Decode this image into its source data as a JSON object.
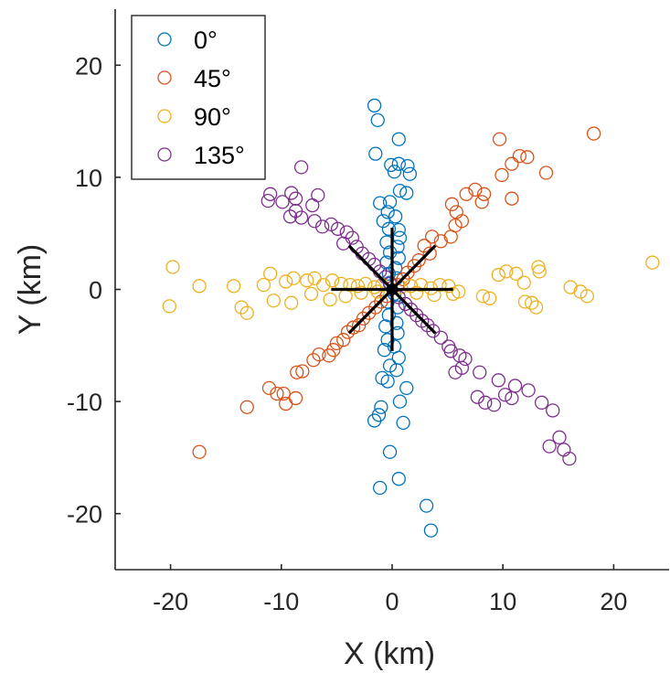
{
  "chart_data": {
    "type": "scatter",
    "title": "",
    "xlabel": "X (km)",
    "ylabel": "Y (km)",
    "xlim": [
      -25,
      25
    ],
    "ylim": [
      -25,
      25
    ],
    "xticks": [
      -20,
      -10,
      0,
      10,
      20
    ],
    "yticks": [
      -20,
      -10,
      0,
      10,
      20
    ],
    "xtick_labels": [
      "-20",
      "-10",
      "0",
      "10",
      "20"
    ],
    "ytick_labels": [
      "-20",
      "-10",
      "0",
      "10",
      "20"
    ],
    "grid": false,
    "legend_position": "top-left",
    "series": [
      {
        "name": "0°",
        "color": "#0072BD",
        "points": [
          [
            -1.6,
            16.4
          ],
          [
            -1.3,
            15.1
          ],
          [
            0.6,
            13.4
          ],
          [
            -1.5,
            12.1
          ],
          [
            -0.1,
            11.1
          ],
          [
            0.6,
            11.2
          ],
          [
            1.4,
            11.0
          ],
          [
            1.6,
            10.3
          ],
          [
            0.2,
            10.5
          ],
          [
            0.7,
            8.8
          ],
          [
            -1.1,
            7.7
          ],
          [
            -0.2,
            7.8
          ],
          [
            1.3,
            8.6
          ],
          [
            -0.4,
            6.9
          ],
          [
            0.3,
            6.5
          ],
          [
            -0.8,
            6.1
          ],
          [
            0.6,
            5.3
          ],
          [
            -0.3,
            5.4
          ],
          [
            0.7,
            4.6
          ],
          [
            -0.5,
            4.2
          ],
          [
            0.5,
            3.8
          ],
          [
            -0.2,
            3.3
          ],
          [
            0.6,
            2.8
          ],
          [
            -0.5,
            2.4
          ],
          [
            0.3,
            1.9
          ],
          [
            -0.3,
            1.4
          ],
          [
            0.4,
            1.0
          ],
          [
            -0.2,
            0.6
          ],
          [
            0.2,
            -0.4
          ],
          [
            -0.4,
            -1.1
          ],
          [
            0.5,
            -1.6
          ],
          [
            -0.3,
            -2.3
          ],
          [
            0.4,
            -3.0
          ],
          [
            -0.6,
            -3.3
          ],
          [
            0.5,
            -3.9
          ],
          [
            -0.4,
            -4.5
          ],
          [
            0.2,
            -5.1
          ],
          [
            -0.7,
            -5.4
          ],
          [
            0.6,
            -6.1
          ],
          [
            -0.2,
            -6.8
          ],
          [
            0.4,
            -7.2
          ],
          [
            -0.9,
            -7.9
          ],
          [
            -0.4,
            -8.2
          ],
          [
            1.3,
            -8.8
          ],
          [
            -1.0,
            -10.5
          ],
          [
            0.7,
            -10.0
          ],
          [
            -1.6,
            -11.7
          ],
          [
            -1.2,
            -11.2
          ],
          [
            1.0,
            -11.9
          ],
          [
            -0.2,
            -14.5
          ],
          [
            0.6,
            -16.9
          ],
          [
            -1.1,
            -17.7
          ],
          [
            3.1,
            -19.3
          ],
          [
            3.5,
            -21.5
          ]
        ]
      },
      {
        "name": "45°",
        "color": "#D95319",
        "points": [
          [
            18.2,
            13.9
          ],
          [
            12.2,
            11.8
          ],
          [
            9.7,
            13.4
          ],
          [
            10.8,
            11.2
          ],
          [
            11.5,
            11.9
          ],
          [
            13.9,
            10.4
          ],
          [
            9.9,
            10.2
          ],
          [
            8.3,
            8.5
          ],
          [
            10.8,
            8.1
          ],
          [
            8.1,
            7.8
          ],
          [
            7.5,
            8.9
          ],
          [
            6.7,
            8.5
          ],
          [
            5.8,
            6.9
          ],
          [
            5.4,
            7.6
          ],
          [
            6.3,
            6.1
          ],
          [
            5.7,
            5.7
          ],
          [
            5.3,
            4.7
          ],
          [
            4.4,
            4.3
          ],
          [
            3.6,
            4.7
          ],
          [
            3.4,
            3.2
          ],
          [
            2.9,
            3.9
          ],
          [
            2.4,
            2.6
          ],
          [
            2.0,
            2.1
          ],
          [
            1.4,
            1.5
          ],
          [
            1.0,
            0.9
          ],
          [
            0.5,
            0.4
          ],
          [
            -0.5,
            -0.6
          ],
          [
            -1.0,
            -1.1
          ],
          [
            -1.5,
            -1.6
          ],
          [
            -2.1,
            -2.1
          ],
          [
            -2.6,
            -2.6
          ],
          [
            -3.0,
            -3.2
          ],
          [
            -3.5,
            -3.4
          ],
          [
            -4.0,
            -3.8
          ],
          [
            -4.4,
            -4.5
          ],
          [
            -5.0,
            -4.8
          ],
          [
            -5.3,
            -5.4
          ],
          [
            -5.7,
            -5.9
          ],
          [
            -6.6,
            -5.8
          ],
          [
            -7.1,
            -6.3
          ],
          [
            -8.1,
            -7.3
          ],
          [
            -8.6,
            -7.4
          ],
          [
            -8.7,
            -9.7
          ],
          [
            -9.8,
            -9.3
          ],
          [
            -10.4,
            -9.3
          ],
          [
            -11.1,
            -8.8
          ],
          [
            -9.6,
            -10.2
          ],
          [
            -13.1,
            -10.5
          ],
          [
            -17.4,
            -14.5
          ]
        ]
      },
      {
        "name": "90°",
        "color": "#EDB120",
        "points": [
          [
            -19.8,
            2.0
          ],
          [
            -20.1,
            -1.5
          ],
          [
            -14.3,
            0.3
          ],
          [
            -13.6,
            -1.6
          ],
          [
            -13.1,
            -2.1
          ],
          [
            -11.0,
            1.4
          ],
          [
            -11.6,
            0.4
          ],
          [
            -10.7,
            -1.0
          ],
          [
            -9.6,
            0.7
          ],
          [
            -8.9,
            1.0
          ],
          [
            -7.7,
            0.8
          ],
          [
            -7.0,
            1.0
          ],
          [
            -6.2,
            0.4
          ],
          [
            -5.4,
            0.8
          ],
          [
            -4.6,
            0.5
          ],
          [
            -3.8,
            0.4
          ],
          [
            -3.1,
            0.3
          ],
          [
            -2.4,
            0.5
          ],
          [
            -1.6,
            0.2
          ],
          [
            -0.9,
            0.4
          ],
          [
            -9.1,
            -1.2
          ],
          [
            -7.3,
            -0.4
          ],
          [
            -5.6,
            -0.9
          ],
          [
            -4.2,
            -0.6
          ],
          [
            -2.8,
            -0.3
          ],
          [
            -1.3,
            -0.2
          ],
          [
            0.8,
            0.2
          ],
          [
            1.7,
            0.3
          ],
          [
            2.6,
            0.4
          ],
          [
            3.5,
            0.1
          ],
          [
            4.3,
            0.4
          ],
          [
            5.1,
            0.3
          ],
          [
            2.2,
            -0.3
          ],
          [
            3.8,
            -0.5
          ],
          [
            5.5,
            -0.4
          ],
          [
            6.0,
            -0.2
          ],
          [
            8.8,
            -0.8
          ],
          [
            8.2,
            -0.6
          ],
          [
            9.6,
            1.3
          ],
          [
            10.3,
            1.6
          ],
          [
            11.2,
            1.4
          ],
          [
            11.9,
            0.6
          ],
          [
            12.0,
            -1.1
          ],
          [
            12.6,
            -1.2
          ],
          [
            13.3,
            1.6
          ],
          [
            13.2,
            2.0
          ],
          [
            13.0,
            -1.6
          ],
          [
            16.1,
            0.2
          ],
          [
            17.0,
            -0.2
          ],
          [
            17.6,
            -0.6
          ],
          [
            23.5,
            2.4
          ],
          [
            -17.4,
            0.3
          ]
        ]
      },
      {
        "name": "135°",
        "color": "#7E2F8E",
        "points": [
          [
            -8.2,
            10.9
          ],
          [
            -11.0,
            8.5
          ],
          [
            -11.2,
            7.9
          ],
          [
            -9.9,
            7.8
          ],
          [
            -9.1,
            8.6
          ],
          [
            -8.7,
            8.1
          ],
          [
            -6.7,
            8.4
          ],
          [
            -7.2,
            7.5
          ],
          [
            -8.7,
            7.0
          ],
          [
            -9.2,
            6.5
          ],
          [
            -8.2,
            6.4
          ],
          [
            -7.0,
            6.1
          ],
          [
            -6.3,
            5.6
          ],
          [
            -5.5,
            5.8
          ],
          [
            -4.9,
            5.4
          ],
          [
            -4.1,
            5.1
          ],
          [
            -3.6,
            4.6
          ],
          [
            -4.4,
            4.1
          ],
          [
            -3.2,
            3.8
          ],
          [
            -2.7,
            3.2
          ],
          [
            -2.1,
            2.7
          ],
          [
            -1.6,
            2.2
          ],
          [
            -1.1,
            1.6
          ],
          [
            -0.6,
            1.1
          ],
          [
            -0.2,
            0.5
          ],
          [
            0.6,
            -0.7
          ],
          [
            1.2,
            -1.3
          ],
          [
            1.7,
            -1.8
          ],
          [
            2.2,
            -2.3
          ],
          [
            2.7,
            -2.8
          ],
          [
            3.2,
            -3.2
          ],
          [
            3.7,
            -3.7
          ],
          [
            4.4,
            -4.3
          ],
          [
            5.1,
            -5.1
          ],
          [
            5.3,
            -5.5
          ],
          [
            6.1,
            -5.9
          ],
          [
            6.6,
            -6.2
          ],
          [
            5.7,
            -7.4
          ],
          [
            6.3,
            -7.0
          ],
          [
            7.9,
            -7.4
          ],
          [
            9.6,
            -8.1
          ],
          [
            10.2,
            -9.4
          ],
          [
            10.8,
            -9.7
          ],
          [
            11.1,
            -8.6
          ],
          [
            12.3,
            -9.0
          ],
          [
            13.5,
            -10.1
          ],
          [
            14.5,
            -10.8
          ],
          [
            7.7,
            -9.6
          ],
          [
            8.4,
            -10.1
          ],
          [
            9.2,
            -10.3
          ],
          [
            15.1,
            -13.2
          ],
          [
            14.2,
            -14.0
          ],
          [
            16.0,
            -15.1
          ],
          [
            15.5,
            -14.3
          ]
        ]
      }
    ],
    "overlay": {
      "center_marker": [
        0,
        0
      ],
      "line_segments": [
        [
          [
            -5.5,
            0
          ],
          [
            5.5,
            0
          ]
        ],
        [
          [
            0,
            -5.5
          ],
          [
            0,
            5.5
          ]
        ],
        [
          [
            -3.9,
            -3.9
          ],
          [
            3.9,
            3.9
          ]
        ],
        [
          [
            -3.9,
            3.9
          ],
          [
            3.9,
            -3.9
          ]
        ]
      ],
      "color": "#000000"
    }
  }
}
